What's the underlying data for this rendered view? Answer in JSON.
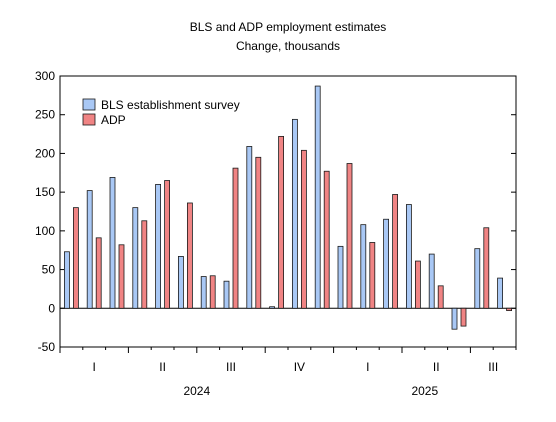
{
  "chart_data": {
    "type": "bar",
    "title": "BLS and ADP employment estimates",
    "subtitle": "Change, thousands",
    "ylim": [
      -50,
      300
    ],
    "yticks": [
      -50,
      0,
      50,
      100,
      150,
      200,
      250,
      300
    ],
    "grid": false,
    "legend_position": "top-left",
    "series": [
      {
        "name": "BLS establishment survey",
        "color": "#a9c8f5",
        "values": [
          73,
          152,
          169,
          130,
          160,
          67,
          41,
          35,
          209,
          2,
          244,
          287,
          80,
          108,
          115,
          134,
          70,
          -27,
          77,
          39
        ]
      },
      {
        "name": "ADP",
        "color": "#f08484",
        "values": [
          130,
          91,
          82,
          113,
          165,
          136,
          42,
          181,
          195,
          222,
          204,
          177,
          187,
          85,
          147,
          61,
          29,
          -23,
          104,
          -3
        ]
      }
    ],
    "months": [
      "2024-01",
      "2024-02",
      "2024-03",
      "2024-04",
      "2024-05",
      "2024-06",
      "2024-07",
      "2024-08",
      "2024-09",
      "2024-10",
      "2024-11",
      "2024-12",
      "2025-01",
      "2025-02",
      "2025-03",
      "2025-04",
      "2025-05",
      "2025-06",
      "2025-07",
      "2025-08"
    ],
    "quarter_labels": [
      "I",
      "II",
      "III",
      "IV",
      "I",
      "II",
      "III"
    ],
    "year_labels": [
      "2024",
      "2025"
    ]
  }
}
